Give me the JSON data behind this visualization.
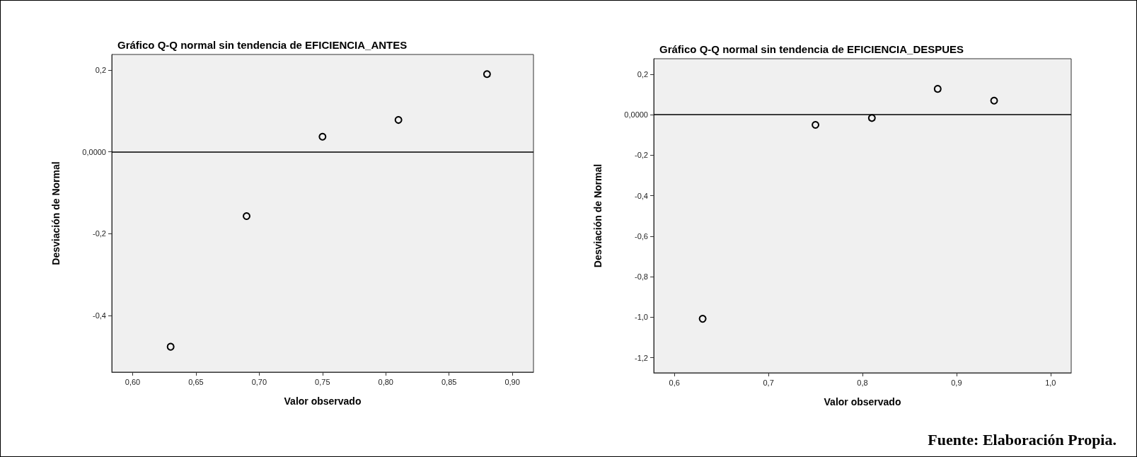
{
  "chart_data": [
    {
      "type": "scatter",
      "title": "Gráfico Q-Q normal sin tendencia de EFICIENCIA_ANTES",
      "xlabel": "Valor observado",
      "ylabel": "Desviación de Normal",
      "x": [
        0.63,
        0.69,
        0.75,
        0.81,
        0.88
      ],
      "series": [
        {
          "color": "#000000",
          "values": [
            -0.476,
            -0.157,
            0.037,
            0.078,
            0.19
          ]
        }
      ],
      "marker": "circle",
      "grid": false,
      "xlim": [
        0.5835,
        0.9167
      ],
      "xticks": [
        {
          "value": 0.6,
          "label": "0,60"
        },
        {
          "value": 0.65,
          "label": "0,65"
        },
        {
          "value": 0.7,
          "label": "0,70"
        },
        {
          "value": 0.75,
          "label": "0,75"
        },
        {
          "value": 0.8,
          "label": "0,80"
        },
        {
          "value": 0.85,
          "label": "0,85"
        },
        {
          "value": 0.9,
          "label": "0,90"
        }
      ],
      "ylim": [
        -0.538,
        0.238
      ],
      "yticks": [
        {
          "value": -0.4,
          "label": "-0,4"
        },
        {
          "value": -0.2,
          "label": "-0,2"
        },
        {
          "value": 0,
          "label": "0,0000"
        },
        {
          "value": 0.2,
          "label": "0,2"
        }
      ],
      "ref_lines": [
        {
          "axis": "y",
          "value": 0,
          "color": "#000000"
        }
      ]
    },
    {
      "type": "scatter",
      "title": "Gráfico Q-Q normal sin tendencia de EFICIENCIA_DESPUES",
      "xlabel": "Valor observado",
      "ylabel": "Desviación de Normal",
      "x": [
        0.63,
        0.75,
        0.81,
        0.88,
        0.94
      ],
      "series": [
        {
          "color": "#000000",
          "values": [
            -1.008,
            -0.05,
            -0.016,
            0.128,
            0.07
          ]
        }
      ],
      "marker": "circle",
      "grid": false,
      "xlim": [
        0.578,
        1.022
      ],
      "xticks": [
        {
          "value": 0.6,
          "label": "0,6"
        },
        {
          "value": 0.7,
          "label": "0,7"
        },
        {
          "value": 0.8,
          "label": "0,8"
        },
        {
          "value": 0.9,
          "label": "0,9"
        },
        {
          "value": 1.0,
          "label": "1,0"
        }
      ],
      "ylim": [
        -1.275,
        0.277
      ],
      "yticks": [
        {
          "value": -1.2,
          "label": "-1,2"
        },
        {
          "value": -1.0,
          "label": "-1,0"
        },
        {
          "value": -0.8,
          "label": "-0,8"
        },
        {
          "value": -0.6,
          "label": "-0,6"
        },
        {
          "value": -0.4,
          "label": "-0,4"
        },
        {
          "value": -0.2,
          "label": "-0,2"
        },
        {
          "value": 0,
          "label": "0,0000"
        },
        {
          "value": 0.2,
          "label": "0,2"
        }
      ],
      "ref_lines": [
        {
          "axis": "y",
          "value": 0,
          "color": "#000000"
        }
      ],
      "annotations": [
        "Fuente: Elaboración Propia."
      ]
    }
  ]
}
